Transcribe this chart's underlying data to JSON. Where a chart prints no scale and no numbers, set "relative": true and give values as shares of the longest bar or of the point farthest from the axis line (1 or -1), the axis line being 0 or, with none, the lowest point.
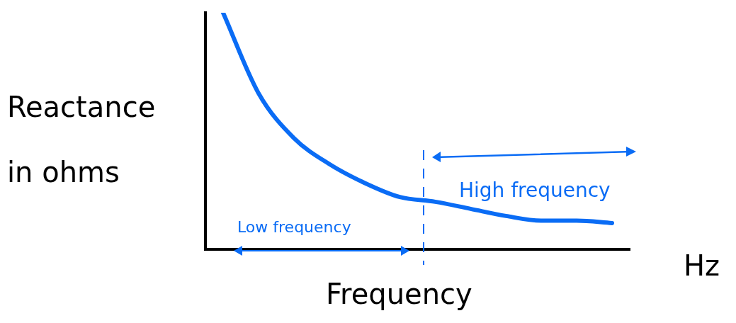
{
  "chart_data": {
    "type": "line",
    "relative": true,
    "ylabel": "Reactance in ohms",
    "xlabel": "Frequency",
    "categories": [
      null,
      null,
      null,
      null,
      null,
      null,
      null,
      null,
      null,
      null,
      null,
      null
    ],
    "series": [
      {
        "color": "#0a6cf5",
        "values": [
          1,
          0.66,
          0.47,
          0.36,
          0.28,
          0.22,
          0.2,
          0.17,
          0.14,
          0.12,
          0.12,
          0.11
        ]
      }
    ],
    "annotations": [
      "Low frequency",
      "High frequency",
      "Hz"
    ],
    "marker": "none",
    "grid": false,
    "legend": false
  }
}
